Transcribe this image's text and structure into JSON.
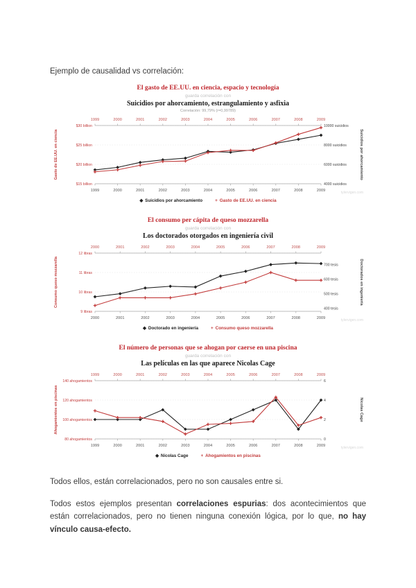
{
  "page": {
    "intro": "Ejemplo de causalidad vs correlación:",
    "conclusion1": "Todos ellos, están correlacionados, pero no son causales entre si.",
    "conclusion2": {
      "t1": "Todos estos ejemplos presentan ",
      "b1": "correlaciones espurias",
      "t2": ": dos acontecimientos que están correlacionados, pero no tienen ninguna conexión lógica, por lo que, ",
      "b2": "no hay vínculo causa-efecto."
    }
  },
  "colors": {
    "accent_red": "#c0272d",
    "series_black": "#222222",
    "series_red": "#c23b3b"
  },
  "chart_data": [
    {
      "type": "line",
      "title_red": "El gasto de EE.UU. en ciencia, espacio y tecnología",
      "subtitle": "guarda correlación con",
      "title_black": "Suicidios por ahorcamiento, estrangulamiento y asfixia",
      "correlation": "Correlación: 99,79% (r=0,99789)",
      "watermark": "tylervigen.com",
      "x": [
        1999,
        2000,
        2001,
        2002,
        2003,
        2004,
        2005,
        2006,
        2007,
        2008,
        2009
      ],
      "left_axis": {
        "title": "Gasto de EE.UU. en ciencia",
        "color": "#c23b3b",
        "min": 15,
        "max": 30,
        "ticks": [
          {
            "v": 30,
            "label": "$30 billion"
          },
          {
            "v": 25,
            "label": "$25 billion"
          },
          {
            "v": 20,
            "label": "$20 billion"
          },
          {
            "v": 15,
            "label": "$15 billion"
          }
        ]
      },
      "right_axis": {
        "title": "Suicidios por ahorcamiento",
        "color": "#444444",
        "min": 4000,
        "max": 10000,
        "ticks": [
          {
            "v": 10000,
            "label": "10000 suicidios"
          },
          {
            "v": 8000,
            "label": "8000 suicidios"
          },
          {
            "v": 6000,
            "label": "6000 suicidios"
          },
          {
            "v": 4000,
            "label": "4000 suicidios"
          }
        ]
      },
      "series": [
        {
          "name": "Suicidios por ahorcamiento",
          "axis": "right",
          "color": "#222222",
          "marker": "diamond",
          "values": [
            5427,
            5688,
            6198,
            6462,
            6635,
            7336,
            7248,
            7491,
            8161,
            8578,
            9000
          ]
        },
        {
          "name": "Gasto de EE.UU. en ciencia",
          "axis": "left",
          "color": "#c23b3b",
          "marker": "plus",
          "values": [
            18.079,
            18.594,
            19.753,
            20.734,
            20.831,
            23.029,
            23.597,
            23.584,
            25.525,
            27.731,
            29.449
          ]
        }
      ]
    },
    {
      "type": "line",
      "title_red": "El consumo per cápita de queso mozzarella",
      "subtitle": "guarda correlación con",
      "title_black": "Los doctorados otorgados en ingeniería civil",
      "correlation": "",
      "watermark": "tylervigen.com",
      "x": [
        2000,
        2001,
        2002,
        2003,
        2004,
        2005,
        2006,
        2007,
        2008,
        2009
      ],
      "left_axis": {
        "title": "Consumo queso mozzarella",
        "color": "#c23b3b",
        "min": 9,
        "max": 12,
        "ticks": [
          {
            "v": 12,
            "label": "12 libras"
          },
          {
            "v": 11,
            "label": "11 libras"
          },
          {
            "v": 10,
            "label": "10 libras"
          },
          {
            "v": 9,
            "label": "9 libras"
          }
        ]
      },
      "right_axis": {
        "title": "Doctorados en ingeniería",
        "color": "#444444",
        "min": 380,
        "max": 780,
        "ticks": [
          {
            "v": 700,
            "label": "700 tesis"
          },
          {
            "v": 600,
            "label": "600 tesis"
          },
          {
            "v": 500,
            "label": "500 tesis"
          },
          {
            "v": 400,
            "label": "400 tesis"
          }
        ]
      },
      "series": [
        {
          "name": "Doctorado en ingeniería",
          "axis": "right",
          "color": "#222222",
          "marker": "diamond",
          "values": [
            480,
            501,
            540,
            552,
            547,
            622,
            655,
            701,
            712,
            708
          ]
        },
        {
          "name": "Consumo queso mozzarella",
          "axis": "left",
          "color": "#c23b3b",
          "marker": "plus",
          "values": [
            9.3,
            9.7,
            9.7,
            9.7,
            9.9,
            10.2,
            10.5,
            11,
            10.6,
            10.6
          ]
        }
      ]
    },
    {
      "type": "line",
      "title_red": "El número de personas que se ahogan por caerse en una piscina",
      "subtitle": "guarda correlación con",
      "title_black": "Las películas en las que aparece Nicolas Cage",
      "correlation": "",
      "watermark": "tylervigen.com",
      "x": [
        1999,
        2000,
        2001,
        2002,
        2003,
        2004,
        2005,
        2006,
        2007,
        2008,
        2009
      ],
      "left_axis": {
        "title": "Ahogamientos en piscinas",
        "color": "#c23b3b",
        "min": 80,
        "max": 140,
        "ticks": [
          {
            "v": 140,
            "label": "140 ahogamientos"
          },
          {
            "v": 120,
            "label": "120 ahogamientos"
          },
          {
            "v": 100,
            "label": "100 ahogamientos"
          },
          {
            "v": 80,
            "label": "80 ahogamientos"
          }
        ]
      },
      "right_axis": {
        "title": "Nicolas Cage",
        "color": "#444444",
        "min": 0,
        "max": 6,
        "ticks": [
          {
            "v": 6,
            "label": "6"
          },
          {
            "v": 4,
            "label": "4"
          },
          {
            "v": 2,
            "label": "2"
          },
          {
            "v": 0,
            "label": "0"
          }
        ]
      },
      "series": [
        {
          "name": "Nicolas Cage",
          "axis": "right",
          "color": "#222222",
          "marker": "diamond",
          "values": [
            2,
            2,
            2,
            3,
            1,
            1,
            2,
            3,
            4,
            1,
            4
          ]
        },
        {
          "name": "Ahogamientos en piscinas",
          "axis": "left",
          "color": "#c23b3b",
          "marker": "plus",
          "values": [
            109,
            102,
            102,
            98,
            85,
            95,
            96,
            98,
            123,
            94,
            102
          ]
        }
      ]
    }
  ]
}
